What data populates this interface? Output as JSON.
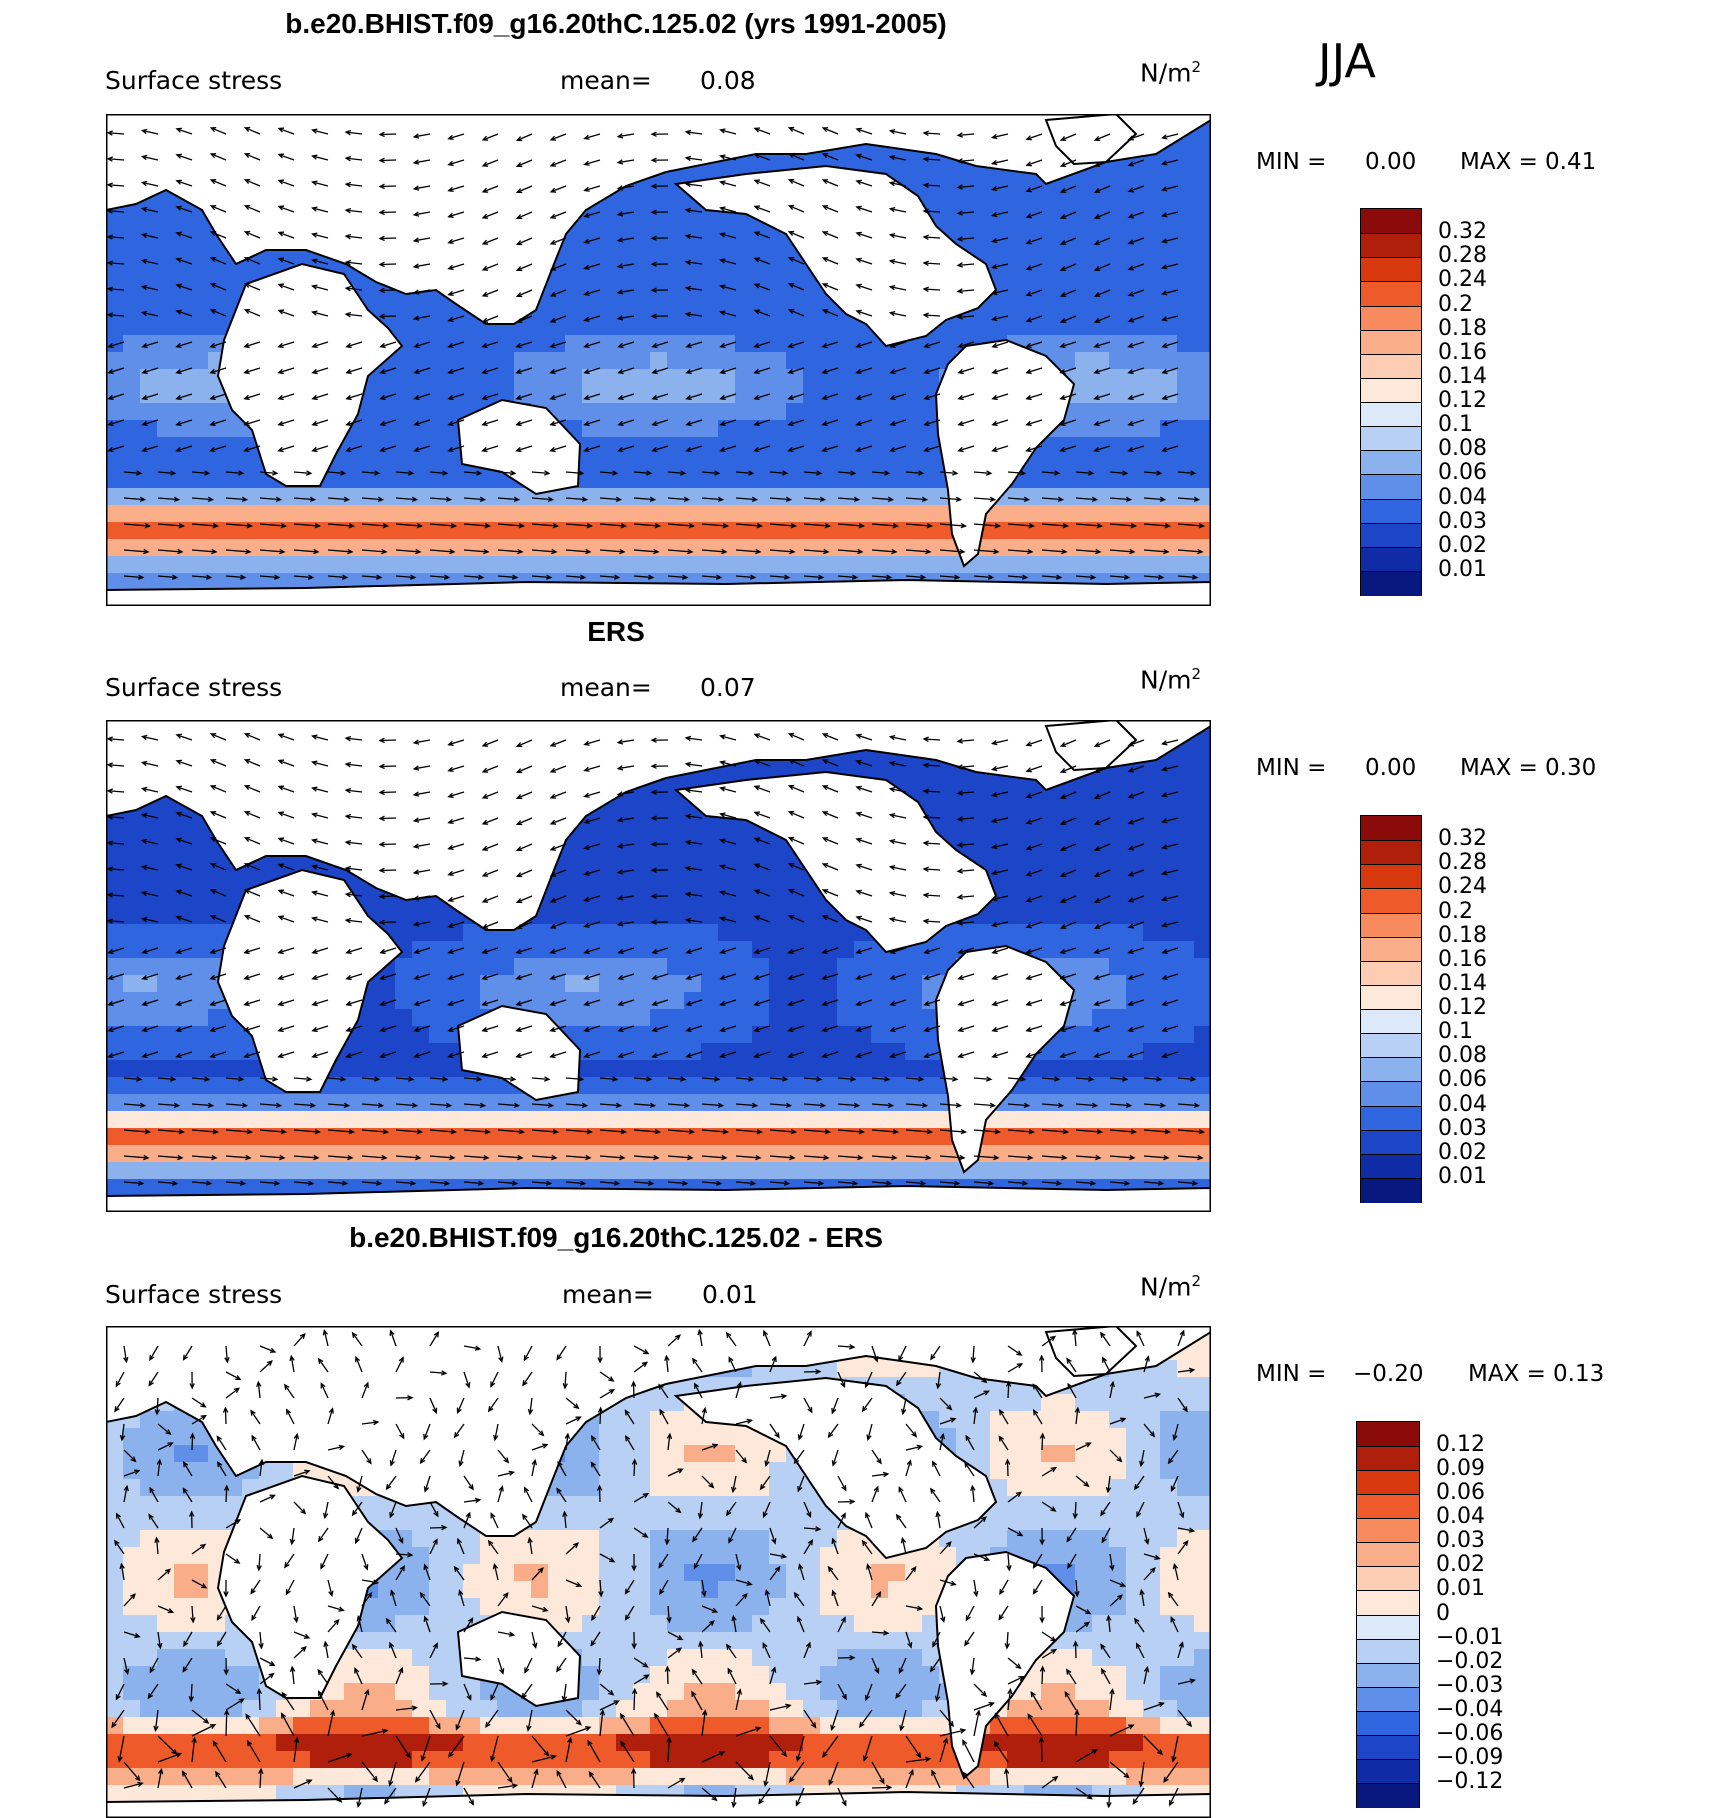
{
  "season": "JJA",
  "panels": [
    {
      "title": "b.e20.BHIST.f09_g16.20thC.125.02 (yrs 1991-2005)",
      "variable": "Surface stress",
      "mean_label": "mean=",
      "mean_value": "0.08",
      "units": "N/m",
      "units_exp": "2",
      "min_label": "MIN =",
      "min_value": "0.00",
      "max_label": "MAX =",
      "max_value": "0.41",
      "colorbar": {
        "levels": [
          "0.32",
          "0.28",
          "0.24",
          "0.2",
          "0.18",
          "0.16",
          "0.14",
          "0.12",
          "0.1",
          "0.08",
          "0.06",
          "0.04",
          "0.03",
          "0.02",
          "0.01"
        ],
        "colors": [
          "#8b0a0a",
          "#b01e0c",
          "#d8380e",
          "#ee5a2a",
          "#f78b5d",
          "#f9ad88",
          "#fcccb3",
          "#fde8d9",
          "#dbe9f8",
          "#b7d0f3",
          "#8cb2ee",
          "#5f8fe8",
          "#2f66e0",
          "#1c45c7",
          "#0f2ba6",
          "#08187f"
        ]
      }
    },
    {
      "title": "ERS",
      "variable": "Surface stress",
      "mean_label": "mean=",
      "mean_value": "0.07",
      "units": "N/m",
      "units_exp": "2",
      "min_label": "MIN =",
      "min_value": "0.00",
      "max_label": "MAX =",
      "max_value": "0.30",
      "colorbar": {
        "levels": [
          "0.32",
          "0.28",
          "0.24",
          "0.2",
          "0.18",
          "0.16",
          "0.14",
          "0.12",
          "0.1",
          "0.08",
          "0.06",
          "0.04",
          "0.03",
          "0.02",
          "0.01"
        ],
        "colors": [
          "#8b0a0a",
          "#b01e0c",
          "#d8380e",
          "#ee5a2a",
          "#f78b5d",
          "#f9ad88",
          "#fcccb3",
          "#fde8d9",
          "#dbe9f8",
          "#b7d0f3",
          "#8cb2ee",
          "#5f8fe8",
          "#2f66e0",
          "#1c45c7",
          "#0f2ba6",
          "#08187f"
        ]
      }
    },
    {
      "title": "b.e20.BHIST.f09_g16.20thC.125.02 - ERS",
      "variable": "Surface stress",
      "mean_label": "mean=",
      "mean_value": "0.01",
      "units": "N/m",
      "units_exp": "2",
      "min_label": "MIN =",
      "min_value": "−0.20",
      "max_label": "MAX =",
      "max_value": "0.13",
      "colorbar": {
        "levels": [
          "0.12",
          "0.09",
          "0.06",
          "0.04",
          "0.03",
          "0.02",
          "0.01",
          "0",
          "−0.01",
          "−0.02",
          "−0.03",
          "−0.04",
          "−0.06",
          "−0.09",
          "−0.12"
        ],
        "colors": [
          "#8b0a0a",
          "#b01e0c",
          "#d8380e",
          "#ee5a2a",
          "#f78b5d",
          "#f9ad88",
          "#fcccb3",
          "#fde8d9",
          "#dbe9f8",
          "#b7d0f3",
          "#8cb2ee",
          "#5f8fe8",
          "#2f66e0",
          "#1c45c7",
          "#0f2ba6",
          "#08187f"
        ]
      }
    }
  ]
}
